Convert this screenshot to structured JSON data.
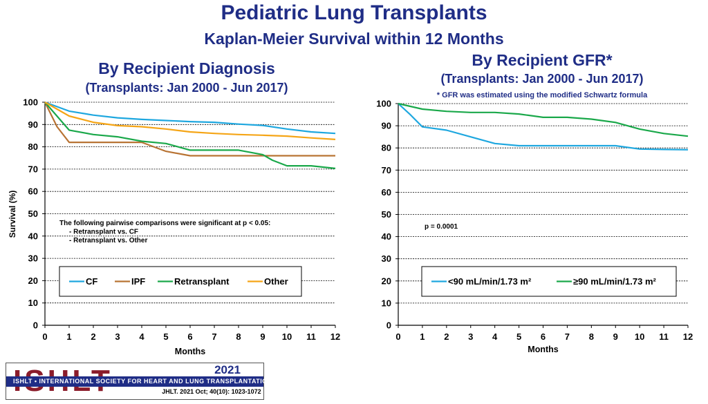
{
  "header": {
    "title": "Pediatric Lung Transplants",
    "subtitle": "Kaplan-Meier Survival within 12 Months"
  },
  "chart_data": [
    {
      "type": "line",
      "title": "By Recipient Diagnosis",
      "subtitle": "(Transplants: Jan 2000 - Jun 2017)",
      "xlabel": "Months",
      "ylabel": "Survival (%)",
      "xlim": [
        0,
        12
      ],
      "ylim": [
        0,
        100
      ],
      "x_ticks": [
        0,
        1,
        2,
        3,
        4,
        5,
        6,
        7,
        8,
        9,
        10,
        11,
        12
      ],
      "y_ticks": [
        0,
        10,
        20,
        30,
        40,
        50,
        60,
        70,
        80,
        90,
        100
      ],
      "grid": true,
      "legend_position": "bottom",
      "annotation": [
        "The following pairwise comparisons were significant at p < 0.05:",
        "- Retransplant vs. CF",
        "- Retransplant vs. Other"
      ],
      "series": [
        {
          "name": "CF",
          "color": "#1ea7df",
          "x": [
            0,
            1,
            2,
            3,
            4,
            5,
            6,
            7,
            8,
            9,
            10,
            11,
            12
          ],
          "y": [
            100,
            96,
            94.2,
            93,
            92.3,
            91.8,
            91.3,
            91,
            90.2,
            89.6,
            88,
            86.7,
            86
          ]
        },
        {
          "name": "IPF",
          "color": "#b87333",
          "x": [
            0,
            0.5,
            1,
            2,
            3,
            4,
            5,
            6,
            7,
            8,
            9,
            10,
            11,
            12
          ],
          "y": [
            100,
            89,
            82,
            82,
            82,
            82,
            78,
            76,
            76,
            76,
            76,
            76,
            76,
            76
          ]
        },
        {
          "name": "Retransplant",
          "color": "#1aa84a",
          "x": [
            0,
            1,
            2,
            3,
            4,
            5,
            6,
            7,
            8,
            8.5,
            9,
            9.4,
            10,
            11,
            12
          ],
          "y": [
            100,
            87.5,
            85.5,
            84.5,
            82.5,
            81.5,
            78.5,
            78.5,
            78.5,
            77.5,
            76.5,
            74,
            71.5,
            71.5,
            70.3
          ]
        },
        {
          "name": "Other",
          "color": "#f5a516",
          "x": [
            0,
            1,
            2,
            3,
            4,
            5,
            6,
            7,
            8,
            9,
            10,
            11,
            12
          ],
          "y": [
            100,
            93.8,
            91,
            89.5,
            89,
            88,
            86.7,
            86,
            85.5,
            85.2,
            84.8,
            84,
            83.3
          ]
        }
      ]
    },
    {
      "type": "line",
      "title": "By Recipient GFR*",
      "subtitle": "(Transplants: Jan 2000 - Jun 2017)",
      "note": "* GFR was estimated using the modified Schwartz formula",
      "xlabel": "Months",
      "ylabel": "",
      "xlim": [
        0,
        12
      ],
      "ylim": [
        0,
        100
      ],
      "x_ticks": [
        0,
        1,
        2,
        3,
        4,
        5,
        6,
        7,
        8,
        9,
        10,
        11,
        12
      ],
      "y_ticks": [
        0,
        10,
        20,
        30,
        40,
        50,
        60,
        70,
        80,
        90,
        100
      ],
      "grid": true,
      "legend_position": "bottom",
      "annotation": [
        "p = 0.0001"
      ],
      "series": [
        {
          "name": "<90 mL/min/1.73 m²",
          "color": "#1ea7df",
          "x": [
            0,
            0.5,
            1,
            2,
            3,
            4,
            5,
            6,
            7,
            8,
            9,
            10,
            11,
            12
          ],
          "y": [
            100,
            95,
            89.5,
            88,
            85,
            82,
            81,
            81,
            81,
            81,
            81,
            79.5,
            79.3,
            79.2
          ]
        },
        {
          "name": "≥90 mL/min/1.73 m²",
          "color": "#1aa84a",
          "x": [
            0,
            1,
            2,
            3,
            4,
            5,
            6,
            7,
            8,
            9,
            10,
            11,
            12
          ],
          "y": [
            100,
            97.5,
            96.5,
            96,
            96,
            95.3,
            93.8,
            93.8,
            93,
            91.5,
            88.5,
            86.5,
            85.3
          ]
        }
      ]
    }
  ],
  "logo": {
    "year": "2021",
    "letters": "ISHLT",
    "band_text": "ISHLT • INTERNATIONAL SOCIETY FOR HEART AND LUNG TRANSPLANTATION",
    "citation": "JHLT. 2021 Oct; 40(10): 1023-1072"
  }
}
